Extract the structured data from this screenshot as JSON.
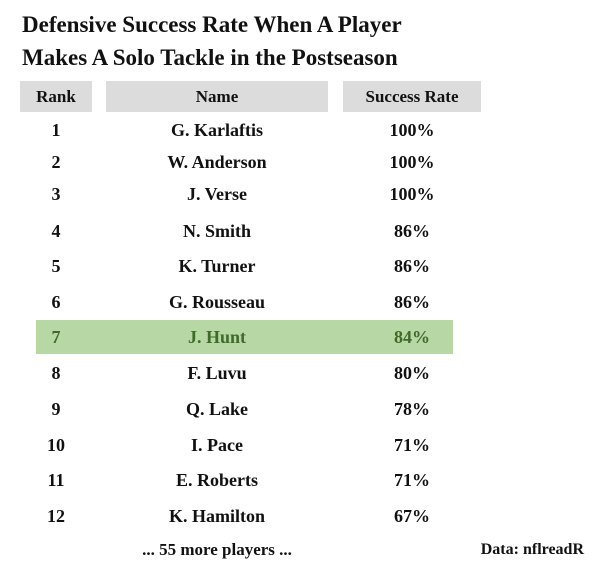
{
  "title_line1": "Defensive Success Rate When A Player",
  "title_line2": "Makes A Solo Tackle in the Postseason",
  "columns": {
    "rank": "Rank",
    "name": "Name",
    "rate": "Success Rate"
  },
  "highlight_color": "#b7d7a4",
  "highlight_text_color": "#3f6a2a",
  "header_bg": "#dcdcdc",
  "chart_data": {
    "type": "table",
    "title": "Defensive Success Rate When A Player Makes A Solo Tackle in the Postseason",
    "columns": [
      "Rank",
      "Name",
      "Success Rate"
    ],
    "rows": [
      {
        "rank": "1",
        "name": "G. Karlaftis",
        "rate": "100%",
        "highlight": false
      },
      {
        "rank": "2",
        "name": "W. Anderson",
        "rate": "100%",
        "highlight": false
      },
      {
        "rank": "3",
        "name": "J. Verse",
        "rate": "100%",
        "highlight": false
      },
      {
        "rank": "4",
        "name": "N. Smith",
        "rate": "86%",
        "highlight": false
      },
      {
        "rank": "5",
        "name": "K. Turner",
        "rate": "86%",
        "highlight": false
      },
      {
        "rank": "6",
        "name": "G. Rousseau",
        "rate": "86%",
        "highlight": false
      },
      {
        "rank": "7",
        "name": "J. Hunt",
        "rate": "84%",
        "highlight": true
      },
      {
        "rank": "8",
        "name": "F. Luvu",
        "rate": "80%",
        "highlight": false
      },
      {
        "rank": "9",
        "name": "Q. Lake",
        "rate": "78%",
        "highlight": false
      },
      {
        "rank": "10",
        "name": "I. Pace",
        "rate": "71%",
        "highlight": false
      },
      {
        "rank": "11",
        "name": "E. Roberts",
        "rate": "71%",
        "highlight": false
      },
      {
        "rank": "12",
        "name": "K. Hamilton",
        "rate": "67%",
        "highlight": false
      }
    ]
  },
  "footer": {
    "more": "... 55 more players ...",
    "source": "Data: nflreadR"
  }
}
